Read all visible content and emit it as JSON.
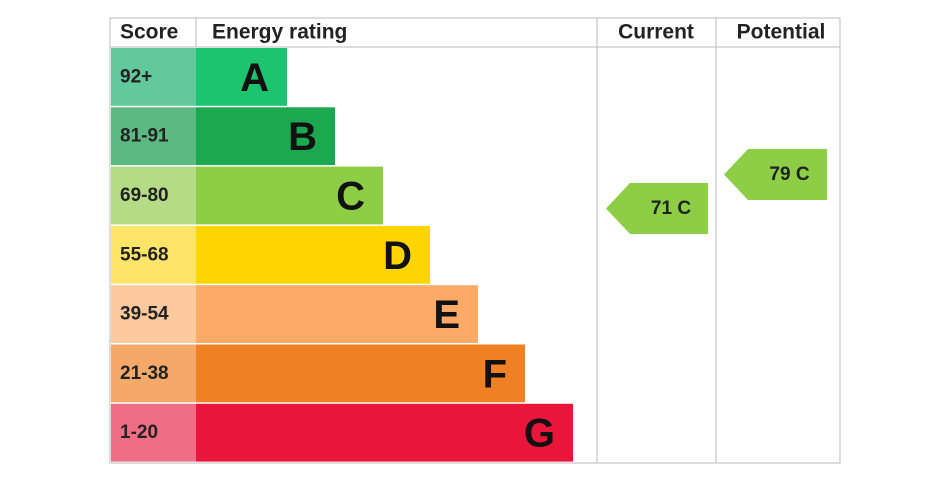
{
  "header": {
    "score": "Score",
    "rating": "Energy rating",
    "current": "Current",
    "potential": "Potential"
  },
  "bands": [
    {
      "range": "92+",
      "letter": "A",
      "color": "#1cc46f",
      "score_color": "#62c99c"
    },
    {
      "range": "81-91",
      "letter": "B",
      "color": "#1ba84f",
      "score_color": "#5cb982"
    },
    {
      "range": "69-80",
      "letter": "C",
      "color": "#8dce46",
      "score_color": "#b4dc86"
    },
    {
      "range": "55-68",
      "letter": "D",
      "color": "#ffd500",
      "score_color": "#ffe46a"
    },
    {
      "range": "39-54",
      "letter": "E",
      "color": "#fcaa65",
      "score_color": "#fbc99d"
    },
    {
      "range": "21-38",
      "letter": "F",
      "color": "#ef8023",
      "score_color": "#f4a96b"
    },
    {
      "range": "1-20",
      "letter": "G",
      "color": "#e9153b",
      "score_color": "#f06d86"
    }
  ],
  "current": {
    "label": "71 C",
    "color": "#8dce46"
  },
  "potential": {
    "label": "79 C",
    "color": "#8dce46"
  }
}
